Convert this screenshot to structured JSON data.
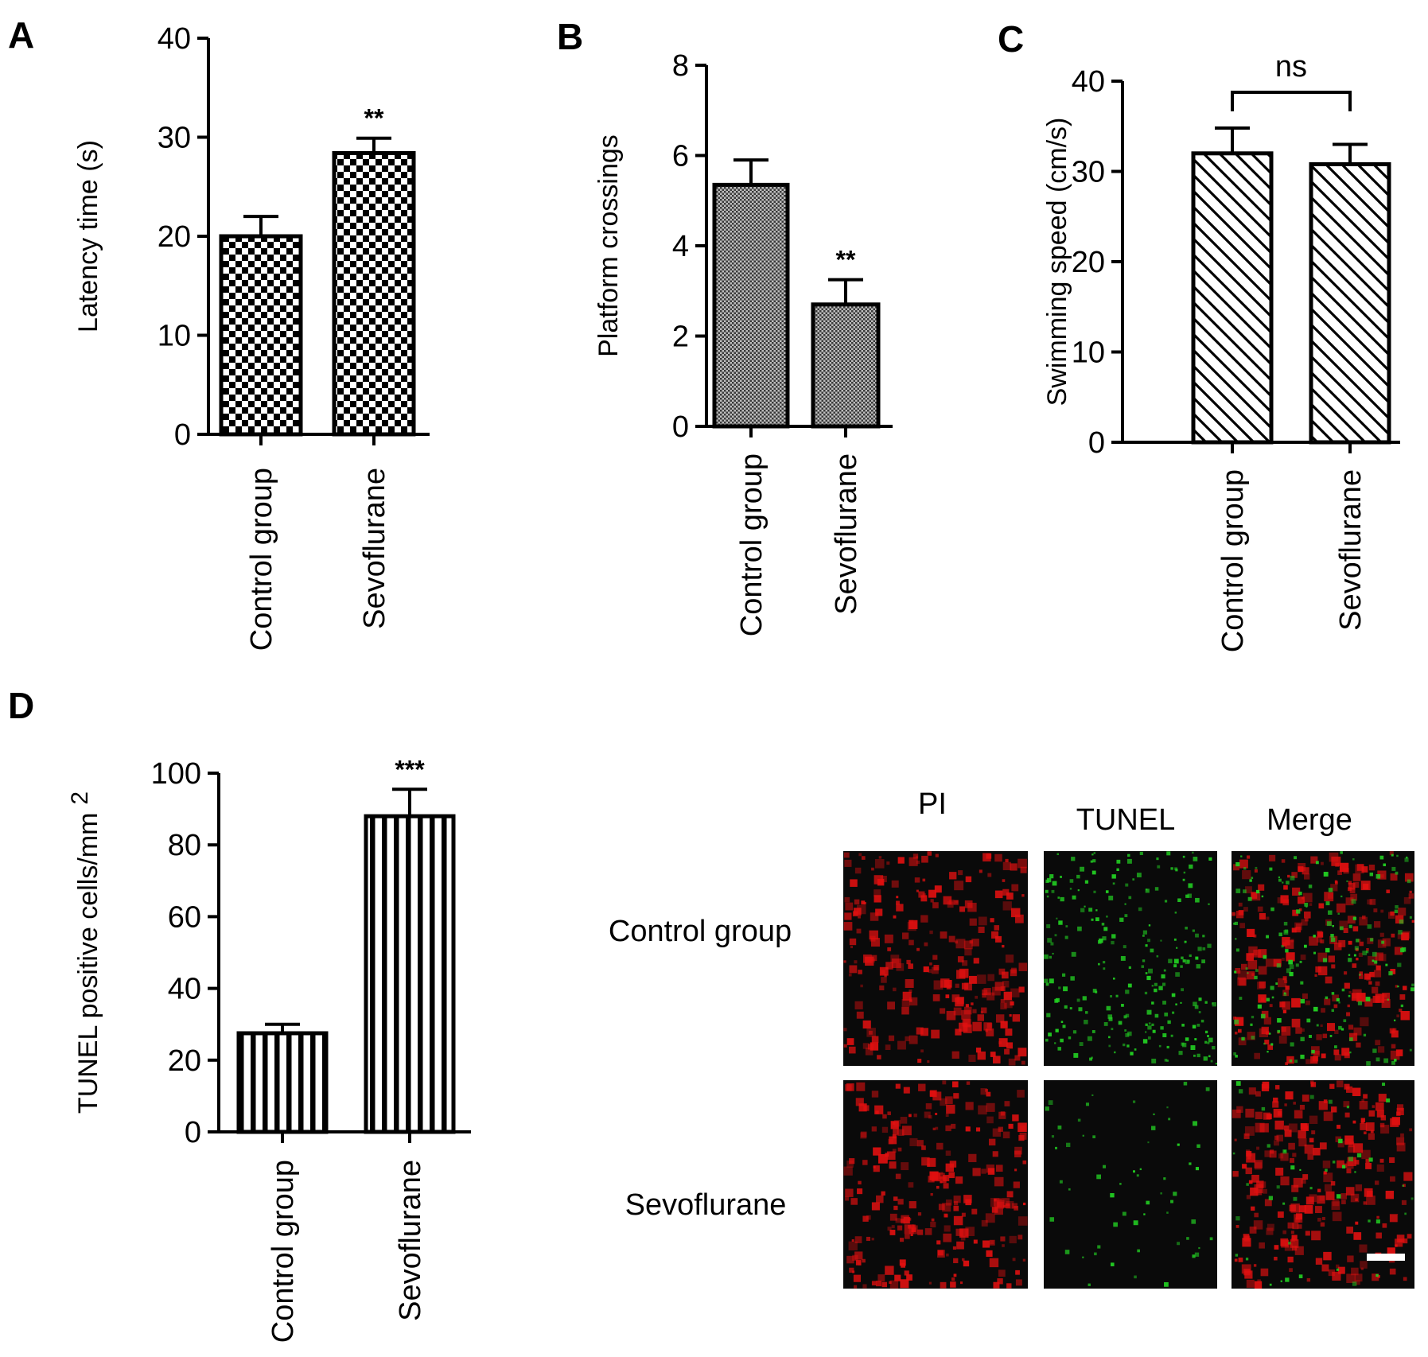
{
  "colors": {
    "ink": "#000000",
    "pi": "#e01010",
    "tunel": "#22cc22",
    "background": "#ffffff"
  },
  "chart_data": [
    {
      "panel": "A",
      "type": "bar",
      "ylabel": "Latency time (s)",
      "categories": [
        "Control group",
        "Sevoflurane"
      ],
      "values": [
        20,
        28.4
      ],
      "errors": [
        2.0,
        1.5
      ],
      "annotations": [
        "",
        "**"
      ],
      "ylim": [
        0,
        40
      ],
      "yticks": [
        "0",
        "10",
        "20",
        "30",
        "40"
      ],
      "pattern": "checkerboard"
    },
    {
      "panel": "B",
      "type": "bar",
      "ylabel": "Platform crossings",
      "categories": [
        "Control group",
        "Sevoflurane"
      ],
      "values": [
        5.35,
        2.7
      ],
      "errors": [
        0.55,
        0.55
      ],
      "annotations": [
        "",
        "**"
      ],
      "ylim": [
        0,
        8
      ],
      "yticks": [
        "0",
        "2",
        "4",
        "6",
        "8"
      ],
      "pattern": "fine-crosshatch"
    },
    {
      "panel": "C",
      "type": "bar",
      "ylabel": "Swimming speed (cm/s)",
      "categories": [
        "Control group",
        "Sevoflurane"
      ],
      "values": [
        32,
        30.8
      ],
      "errors": [
        2.8,
        2.2
      ],
      "comparison": "ns",
      "ylim": [
        0,
        40
      ],
      "yticks": [
        "0",
        "10",
        "20",
        "30",
        "40"
      ],
      "pattern": "diagonal-hatch"
    },
    {
      "panel": "D",
      "type": "bar",
      "ylabel": "TUNEL positive cells/mm",
      "ylabel_superscript": "2",
      "categories": [
        "Control group",
        "Sevoflurane"
      ],
      "values": [
        27.5,
        88
      ],
      "errors": [
        2.5,
        7.5
      ],
      "annotations": [
        "",
        "***"
      ],
      "ylim": [
        0,
        100
      ],
      "yticks": [
        "0",
        "20",
        "40",
        "60",
        "80",
        "100"
      ],
      "pattern": "vertical-stripes"
    }
  ],
  "microscopy": {
    "columns": [
      "PI",
      "TUNEL",
      "Merge"
    ],
    "rows": [
      "Control group",
      "Sevoflurane"
    ]
  }
}
